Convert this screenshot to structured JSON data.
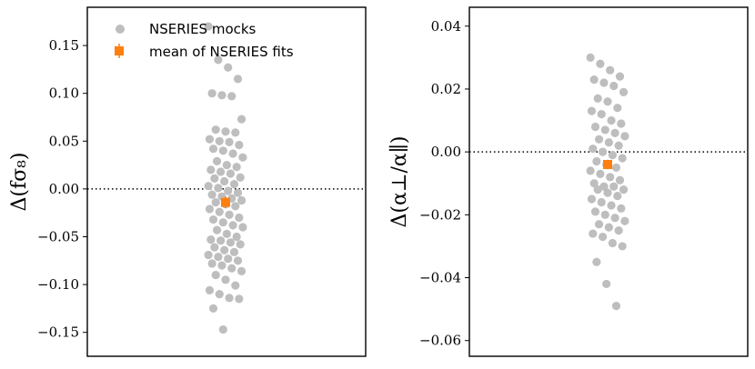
{
  "colors": {
    "mocks": "#bebebe",
    "mean": "#ff7f0e",
    "axis": "#000000"
  },
  "legend": {
    "mocks_label": "NSERIES mocks",
    "mean_label": "mean of NSERIES fits"
  },
  "chart_data": [
    {
      "type": "scatter",
      "ylabel": "Δ(fσ₈)",
      "ylim": [
        -0.175,
        0.19
      ],
      "yticks": [
        0.15,
        0.1,
        0.05,
        0.0,
        -0.05,
        -0.1,
        -0.15
      ],
      "ytick_labels": [
        "0.15",
        "0.10",
        "0.05",
        "0.00",
        "−0.05",
        "−0.10",
        "−0.15"
      ],
      "reference_line_y": 0.0,
      "legend_placement": "top-left",
      "series": [
        {
          "name": "NSERIES mocks",
          "y": [
            0.17,
            0.135,
            0.127,
            0.115,
            0.1,
            0.098,
            0.097,
            0.073,
            0.062,
            0.06,
            0.059,
            0.052,
            0.05,
            0.049,
            0.046,
            0.042,
            0.04,
            0.037,
            0.033,
            0.029,
            0.025,
            0.023,
            0.02,
            0.018,
            0.016,
            0.012,
            0.011,
            0.008,
            0.005,
            0.003,
            0.001,
            -0.002,
            -0.004,
            -0.006,
            -0.008,
            -0.01,
            -0.012,
            -0.014,
            -0.016,
            -0.018,
            -0.021,
            -0.024,
            -0.027,
            -0.03,
            -0.032,
            -0.035,
            -0.038,
            -0.04,
            -0.043,
            -0.047,
            -0.05,
            -0.053,
            -0.054,
            -0.056,
            -0.058,
            -0.061,
            -0.064,
            -0.066,
            -0.069,
            -0.071,
            -0.073,
            -0.075,
            -0.078,
            -0.08,
            -0.083,
            -0.086,
            -0.09,
            -0.095,
            -0.101,
            -0.106,
            -0.11,
            -0.114,
            -0.115,
            -0.125,
            -0.147
          ]
        },
        {
          "name": "mean of NSERIES fits",
          "y": [
            -0.014
          ],
          "yerr": [
            0.006
          ]
        }
      ]
    },
    {
      "type": "scatter",
      "ylabel": "Δ(α⊥/α∥)",
      "ylim": [
        -0.065,
        0.046
      ],
      "yticks": [
        0.04,
        0.02,
        0.0,
        -0.02,
        -0.04,
        -0.06
      ],
      "ytick_labels": [
        "0.04",
        "0.02",
        "0.00",
        "−0.02",
        "−0.04",
        "−0.06"
      ],
      "reference_line_y": 0.0,
      "series": [
        {
          "name": "NSERIES mocks",
          "y": [
            0.03,
            0.028,
            0.026,
            0.024,
            0.023,
            0.022,
            0.021,
            0.019,
            0.017,
            0.016,
            0.014,
            0.013,
            0.012,
            0.01,
            0.009,
            0.008,
            0.007,
            0.006,
            0.005,
            0.004,
            0.003,
            0.002,
            0.001,
            0.0,
            -0.001,
            -0.002,
            -0.003,
            -0.004,
            -0.005,
            -0.006,
            -0.007,
            -0.008,
            -0.009,
            -0.01,
            -0.011,
            -0.011,
            -0.012,
            -0.012,
            -0.013,
            -0.014,
            -0.015,
            -0.016,
            -0.017,
            -0.018,
            -0.019,
            -0.02,
            -0.021,
            -0.022,
            -0.023,
            -0.024,
            -0.025,
            -0.026,
            -0.027,
            -0.029,
            -0.03,
            -0.035,
            -0.042,
            -0.049
          ]
        },
        {
          "name": "mean of NSERIES fits",
          "y": [
            -0.004
          ],
          "yerr": [
            0.0015
          ]
        }
      ]
    }
  ]
}
